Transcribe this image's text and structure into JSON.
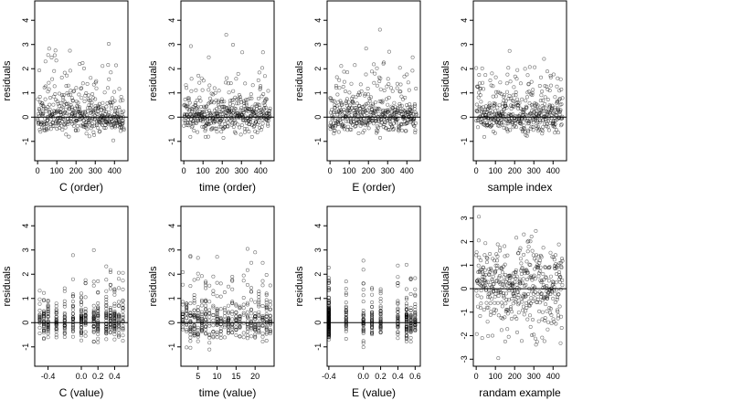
{
  "chart_data": [
    {
      "id": "p1",
      "type": "scatter",
      "xlabel": "C (order)",
      "ylabel": "residuals",
      "xlim": [
        -15,
        470
      ],
      "ylim": [
        -1.8,
        4.8
      ],
      "xticks": [
        0,
        100,
        200,
        300,
        400
      ],
      "yticks": [
        -1,
        0,
        1,
        2,
        3,
        4
      ],
      "hline": 0,
      "mode": "order",
      "n": 450,
      "seed": 11
    },
    {
      "id": "p2",
      "type": "scatter",
      "xlabel": "time (order)",
      "ylabel": "residuals",
      "xlim": [
        -15,
        470
      ],
      "ylim": [
        -1.8,
        4.8
      ],
      "xticks": [
        0,
        100,
        200,
        300,
        400
      ],
      "yticks": [
        -1,
        0,
        1,
        2,
        3,
        4
      ],
      "hline": 0,
      "mode": "order",
      "n": 450,
      "seed": 23
    },
    {
      "id": "p3",
      "type": "scatter",
      "xlabel": "E (order)",
      "ylabel": "residuals",
      "xlim": [
        -15,
        470
      ],
      "ylim": [
        -1.8,
        4.8
      ],
      "xticks": [
        0,
        100,
        200,
        300,
        400
      ],
      "yticks": [
        -1,
        0,
        1,
        2,
        3,
        4
      ],
      "hline": 0,
      "mode": "order",
      "n": 450,
      "seed": 37
    },
    {
      "id": "p4",
      "type": "scatter",
      "xlabel": "sample index",
      "ylabel": "residuals",
      "xlim": [
        -15,
        470
      ],
      "ylim": [
        -1.8,
        4.8
      ],
      "xticks": [
        0,
        100,
        200,
        300,
        400
      ],
      "yticks": [
        -1,
        0,
        1,
        2,
        3,
        4
      ],
      "hline": 0,
      "mode": "order",
      "n": 450,
      "seed": 41
    },
    {
      "id": "p5",
      "type": "scatter",
      "xlabel": "C (value)",
      "ylabel": "residuals",
      "xlim": [
        -0.56,
        0.56
      ],
      "ylim": [
        -1.8,
        4.8
      ],
      "xticks": [
        -0.4,
        0.0,
        0.2,
        0.4
      ],
      "xticklabels": [
        "-0.4",
        "0.0",
        "0.2",
        "0.4"
      ],
      "yticks": [
        -1,
        0,
        1,
        2,
        3,
        4
      ],
      "hline": 0,
      "mode": "value",
      "n": 450,
      "seed": 53,
      "levels": [
        -0.5,
        -0.45,
        -0.4,
        -0.3,
        -0.2,
        -0.1,
        0.0,
        0.05,
        0.15,
        0.2,
        0.3,
        0.35,
        0.4,
        0.45,
        0.5
      ]
    },
    {
      "id": "p6",
      "type": "scatter",
      "xlabel": "time (value)",
      "ylabel": "residuals",
      "xlim": [
        0.5,
        25
      ],
      "ylim": [
        -1.8,
        4.8
      ],
      "xticks": [
        5,
        10,
        15,
        20
      ],
      "xticklabels": [
        "5",
        "10",
        "15",
        "20"
      ],
      "yticks": [
        -1,
        0,
        1,
        2,
        3,
        4
      ],
      "hline": 0,
      "mode": "value",
      "n": 450,
      "seed": 67,
      "levels": [
        1,
        2,
        3,
        4,
        5,
        6,
        7,
        8,
        9,
        10,
        11,
        12,
        13,
        14,
        15,
        16,
        17,
        18,
        19,
        20,
        21,
        22,
        23,
        24
      ]
    },
    {
      "id": "p7",
      "type": "scatter",
      "xlabel": "E (value)",
      "ylabel": "residuals",
      "xlim": [
        -0.42,
        0.66
      ],
      "ylim": [
        -1.8,
        4.8
      ],
      "xticks": [
        -0.4,
        0.0,
        0.2,
        0.4,
        0.6
      ],
      "xticklabels": [
        "-0.4",
        "0.0",
        "0.2",
        "0.4",
        "0.6"
      ],
      "yticks": [
        -1,
        0,
        1,
        2,
        3,
        4
      ],
      "hline": 0,
      "mode": "value",
      "n": 450,
      "seed": 79,
      "levels": [
        -0.4,
        -0.4,
        -0.4,
        -0.4,
        -0.4,
        -0.2,
        0.0,
        0.1,
        0.2,
        0.4,
        0.5,
        0.55,
        0.6
      ]
    },
    {
      "id": "p8",
      "type": "scatter",
      "xlabel": "randam example",
      "ylabel": "residuals",
      "xlim": [
        -15,
        470
      ],
      "ylim": [
        -3.3,
        3.5
      ],
      "xticks": [
        0,
        100,
        200,
        300,
        400
      ],
      "yticks": [
        -3,
        -2,
        -1,
        0,
        1,
        2,
        3
      ],
      "hline": 0,
      "mode": "normal",
      "n": 450,
      "seed": 97
    }
  ]
}
